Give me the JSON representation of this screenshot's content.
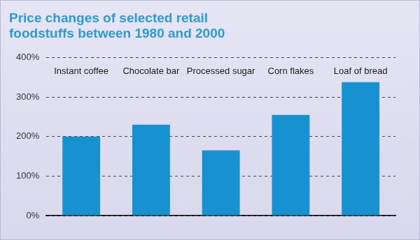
{
  "chart_data": {
    "type": "bar",
    "title": "Price changes of selected retail foodstuffs between 1980 and 2000",
    "categories": [
      "Instant coffee",
      "Chocolate bar",
      "Processed sugar",
      "Corn flakes",
      "Loaf of bread"
    ],
    "values": [
      200,
      230,
      165,
      255,
      338
    ],
    "color": "#1791d0",
    "ylim": [
      0,
      400
    ],
    "yticks": [
      {
        "value": 0,
        "label": "0%"
      },
      {
        "value": 100,
        "label": "100%"
      },
      {
        "value": 200,
        "label": "200%"
      },
      {
        "value": 300,
        "label": "300%"
      },
      {
        "value": 400,
        "label": "400%"
      }
    ],
    "grid": true
  }
}
